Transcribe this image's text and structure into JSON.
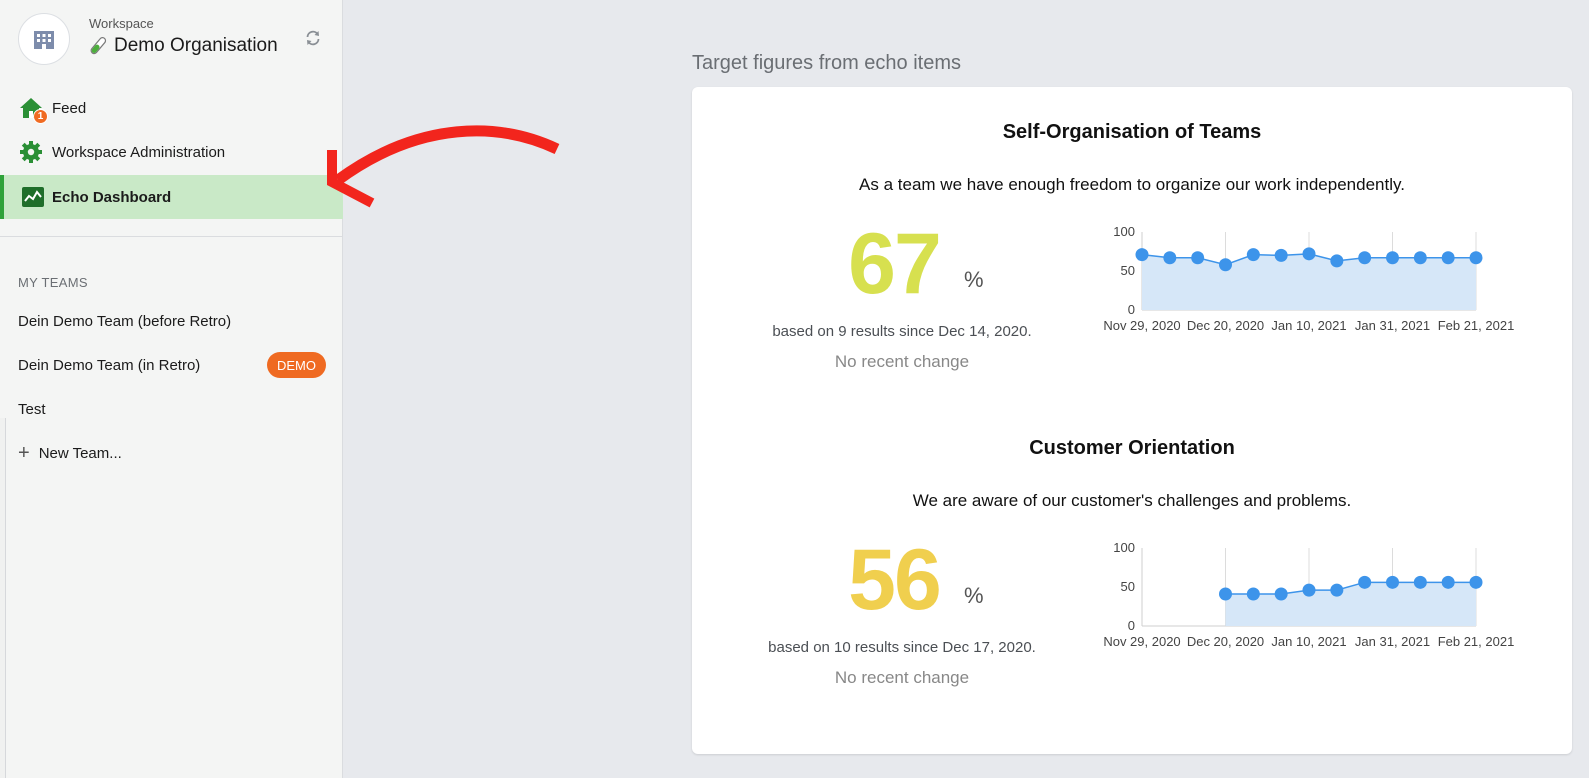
{
  "workspace": {
    "label": "Workspace",
    "name": "Demo Organisation",
    "icon": "building-icon",
    "name_icon": "test-tube-icon"
  },
  "nav": {
    "feed": {
      "label": "Feed",
      "icon": "home-icon",
      "count": "1"
    },
    "admin": {
      "label": "Workspace Administration",
      "icon": "gear-icon"
    },
    "echo": {
      "label": "Echo Dashboard",
      "icon": "activity-chart-icon"
    }
  },
  "teams": {
    "section_title": "MY TEAMS",
    "items": [
      {
        "label": "Dein Demo Team (before Retro)"
      },
      {
        "label": "Dein Demo Team (in Retro)",
        "badge": "DEMO"
      },
      {
        "label": "Test"
      }
    ],
    "new_team_label": "New Team..."
  },
  "colors": {
    "accent_green": "#2fa23a",
    "demo_badge": "#ef6a21",
    "metric1_value": "#d7e04f",
    "metric2_value": "#f0cf4e",
    "chart_line": "#3d94ea",
    "chart_fill": "#d6e7f8",
    "annotation_arrow": "#f2251d"
  },
  "main": {
    "title": "Target figures from echo items"
  },
  "metrics": [
    {
      "title": "Self-Organisation of Teams",
      "question": "As a team we have enough freedom to organize our work independently.",
      "value": "67",
      "unit": "%",
      "based_on": "based on 9 results since Dec 14, 2020.",
      "change": "No recent change"
    },
    {
      "title": "Customer Orientation",
      "question": "We are aware of our customer's challenges and problems.",
      "value": "56",
      "unit": "%",
      "based_on": "based on 10 results since Dec 17, 2020.",
      "change": "No recent change"
    }
  ],
  "chart_data": [
    {
      "type": "area",
      "x_tick_labels": [
        "Nov 29, 2020",
        "Dec 20, 2020",
        "Jan 10, 2021",
        "Jan 31, 2021",
        "Feb 21, 2021"
      ],
      "y_tick_labels": [
        "100",
        "50",
        "0"
      ],
      "ylim": [
        0,
        100
      ],
      "x": [
        "Nov 29, 2020",
        "Dec 6, 2020",
        "Dec 13, 2020",
        "Dec 20, 2020",
        "Dec 27, 2020",
        "Jan 3, 2021",
        "Jan 10, 2021",
        "Jan 17, 2021",
        "Jan 24, 2021",
        "Jan 31, 2021",
        "Feb 7, 2021",
        "Feb 14, 2021",
        "Feb 21, 2021"
      ],
      "values": [
        71,
        67,
        67,
        58,
        71,
        70,
        72,
        63,
        67,
        67,
        67,
        67,
        67
      ],
      "grid": "vertical"
    },
    {
      "type": "area",
      "x_tick_labels": [
        "Nov 29, 2020",
        "Dec 20, 2020",
        "Jan 10, 2021",
        "Jan 31, 2021",
        "Feb 21, 2021"
      ],
      "y_tick_labels": [
        "100",
        "50",
        "0"
      ],
      "ylim": [
        0,
        100
      ],
      "x": [
        "Dec 20, 2020",
        "Dec 27, 2020",
        "Jan 3, 2021",
        "Jan 10, 2021",
        "Jan 17, 2021",
        "Jan 24, 2021",
        "Jan 31, 2021",
        "Feb 7, 2021",
        "Feb 14, 2021",
        "Feb 21, 2021"
      ],
      "values": [
        41,
        41,
        41,
        46,
        46,
        56,
        56,
        56,
        56,
        56
      ],
      "grid": "vertical"
    }
  ]
}
